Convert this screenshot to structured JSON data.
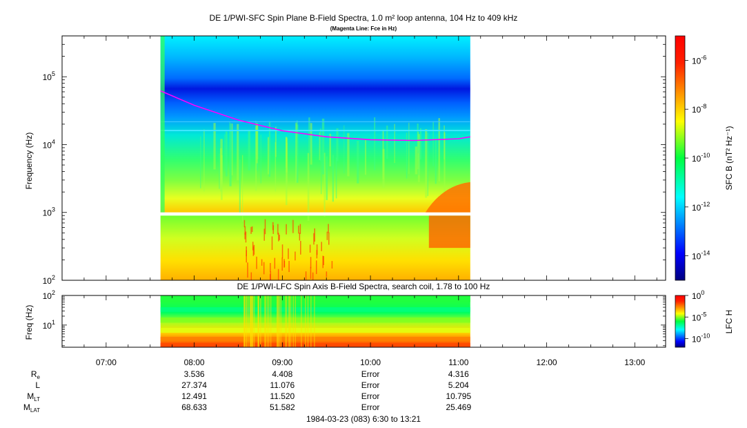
{
  "chart_data": [
    {
      "type": "heatmap",
      "title": "DE 1/PWI-SFC  Spin Plane B-Field Spectra, 1.0 m² loop antenna, 104 Hz to 409 kHz",
      "subtitle": "(Magenta Line: Fce in Hz)",
      "ylabel": "Frequency (Hz)",
      "yscale": "log",
      "ylim": [
        100,
        400000
      ],
      "yticks": [
        {
          "value": 100,
          "base": "10",
          "exp": "2"
        },
        {
          "value": 1000,
          "base": "10",
          "exp": "3"
        },
        {
          "value": 10000,
          "base": "10",
          "exp": "4"
        },
        {
          "value": 100000,
          "base": "10",
          "exp": "5"
        }
      ],
      "data_start_hour": 7.617,
      "data_end_hour": 11.133,
      "colorbar": {
        "label": "SFC B (nT² Hz⁻¹)",
        "scale": "log",
        "range_exp": [
          -15,
          -5
        ],
        "ticks": [
          {
            "exp_value": -6,
            "base": "10",
            "exp": "-6"
          },
          {
            "exp_value": -8,
            "base": "10",
            "exp": "-8"
          },
          {
            "exp_value": -10,
            "base": "10",
            "exp": "-10"
          },
          {
            "exp_value": -12,
            "base": "10",
            "exp": "-12"
          },
          {
            "exp_value": -14,
            "base": "10",
            "exp": "-14"
          }
        ]
      },
      "fce_line": {
        "color": "#ff00ff",
        "x_hours": [
          7.617,
          8.0,
          8.5,
          9.0,
          9.5,
          10.0,
          10.5,
          11.0,
          11.133
        ],
        "y_hz": [
          62000,
          38000,
          23000,
          16000,
          13000,
          11800,
          11500,
          12200,
          13000
        ]
      }
    },
    {
      "type": "heatmap",
      "title": "DE 1/PWI-LFC  Spin Axis B-Field Spectra, search coil, 1.78 to 100 Hz",
      "ylabel": "Freq (Hz)",
      "yscale": "log",
      "ylim": [
        1.78,
        100
      ],
      "yticks": [
        {
          "value": 10,
          "base": "10",
          "exp": "1"
        },
        {
          "value": 100,
          "base": "10",
          "exp": "2"
        }
      ],
      "colorbar": {
        "label": "LFC H",
        "scale": "log",
        "range_exp": [
          -12,
          0
        ],
        "ticks": [
          {
            "exp_value": 0,
            "base": "10",
            "exp": "0"
          },
          {
            "exp_value": -5,
            "base": "10",
            "exp": "-5"
          },
          {
            "exp_value": -10,
            "base": "10",
            "exp": "-10"
          }
        ]
      }
    }
  ],
  "xaxis": {
    "range_hours": [
      6.5,
      13.35
    ],
    "ticks": [
      {
        "hour": 7,
        "label": "07:00"
      },
      {
        "hour": 8,
        "label": "08:00"
      },
      {
        "hour": 9,
        "label": "09:00"
      },
      {
        "hour": 10,
        "label": "10:00"
      },
      {
        "hour": 11,
        "label": "11:00"
      },
      {
        "hour": 12,
        "label": "12:00"
      },
      {
        "hour": 13,
        "label": "13:00"
      }
    ]
  },
  "ephemeris": {
    "rows": [
      {
        "name": "R",
        "sub": "e",
        "values": [
          "3.536",
          "4.408",
          "Error",
          "4.316"
        ]
      },
      {
        "name": "L",
        "sub": "",
        "values": [
          "27.374",
          "11.076",
          "Error",
          "5.204"
        ]
      },
      {
        "name": "M",
        "sub": "LT",
        "values": [
          "12.491",
          "11.520",
          "Error",
          "10.795"
        ]
      },
      {
        "name": "M",
        "sub": "LAT",
        "values": [
          "68.633",
          "51.582",
          "Error",
          "25.469"
        ]
      }
    ],
    "column_hours": [
      8,
      9,
      10,
      11
    ]
  },
  "footer": "1984-03-23 (083) 6:30 to 13:21"
}
